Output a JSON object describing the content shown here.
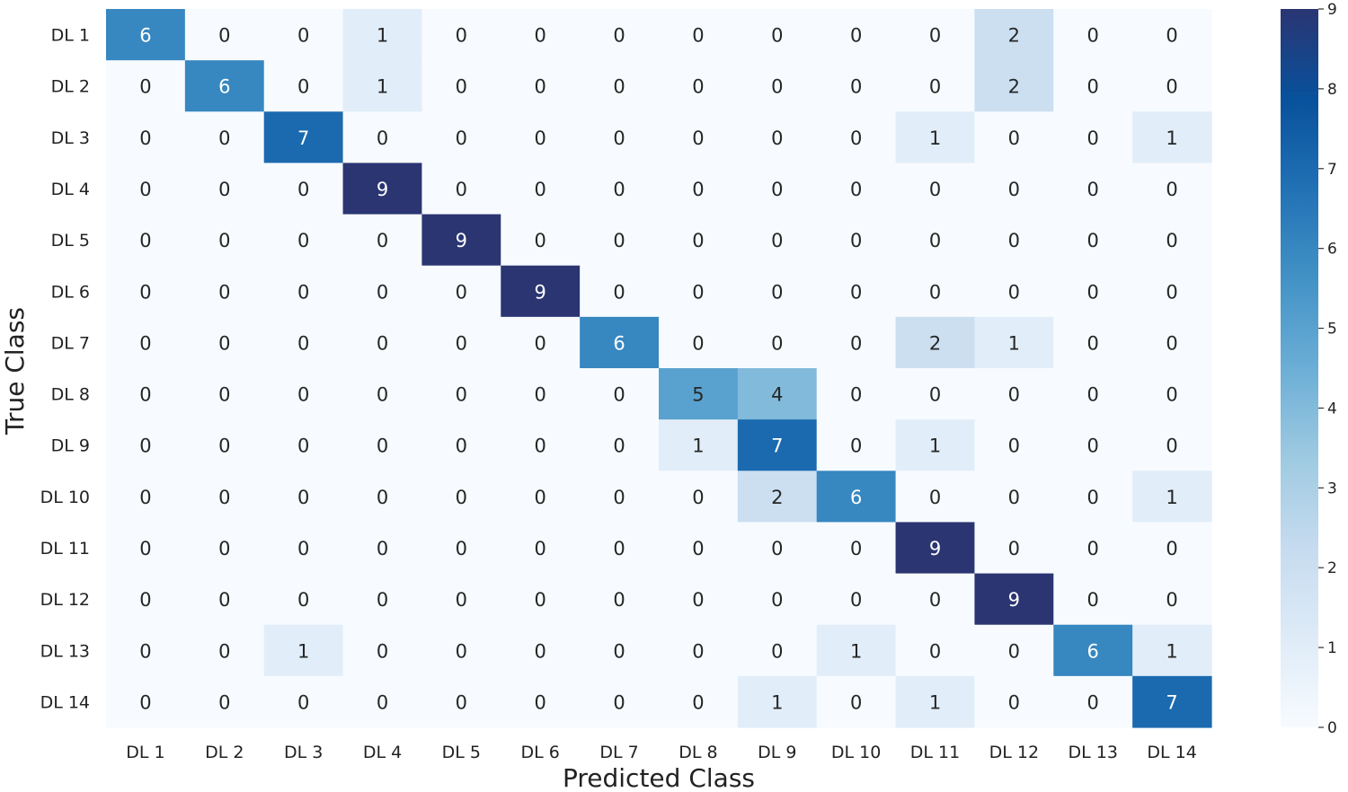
{
  "chart_data": {
    "type": "heatmap",
    "title": "",
    "xlabel": "Predicted Class",
    "ylabel": "True Class",
    "x_categories": [
      "DL 1",
      "DL 2",
      "DL 3",
      "DL 4",
      "DL 5",
      "DL 6",
      "DL 7",
      "DL 8",
      "DL 9",
      "DL 10",
      "DL 11",
      "DL 12",
      "DL 13",
      "DL 14"
    ],
    "y_categories": [
      "DL 1",
      "DL 2",
      "DL 3",
      "DL 4",
      "DL 5",
      "DL 6",
      "DL 7",
      "DL 8",
      "DL 9",
      "DL 10",
      "DL 11",
      "DL 12",
      "DL 13",
      "DL 14"
    ],
    "values": [
      [
        6,
        0,
        0,
        1,
        0,
        0,
        0,
        0,
        0,
        0,
        0,
        2,
        0,
        0
      ],
      [
        0,
        6,
        0,
        1,
        0,
        0,
        0,
        0,
        0,
        0,
        0,
        2,
        0,
        0
      ],
      [
        0,
        0,
        7,
        0,
        0,
        0,
        0,
        0,
        0,
        0,
        1,
        0,
        0,
        1
      ],
      [
        0,
        0,
        0,
        9,
        0,
        0,
        0,
        0,
        0,
        0,
        0,
        0,
        0,
        0
      ],
      [
        0,
        0,
        0,
        0,
        9,
        0,
        0,
        0,
        0,
        0,
        0,
        0,
        0,
        0
      ],
      [
        0,
        0,
        0,
        0,
        0,
        9,
        0,
        0,
        0,
        0,
        0,
        0,
        0,
        0
      ],
      [
        0,
        0,
        0,
        0,
        0,
        0,
        6,
        0,
        0,
        0,
        2,
        1,
        0,
        0
      ],
      [
        0,
        0,
        0,
        0,
        0,
        0,
        0,
        5,
        4,
        0,
        0,
        0,
        0,
        0
      ],
      [
        0,
        0,
        0,
        0,
        0,
        0,
        0,
        1,
        7,
        0,
        1,
        0,
        0,
        0
      ],
      [
        0,
        0,
        0,
        0,
        0,
        0,
        0,
        0,
        2,
        6,
        0,
        0,
        0,
        1
      ],
      [
        0,
        0,
        0,
        0,
        0,
        0,
        0,
        0,
        0,
        0,
        9,
        0,
        0,
        0
      ],
      [
        0,
        0,
        0,
        0,
        0,
        0,
        0,
        0,
        0,
        0,
        0,
        9,
        0,
        0
      ],
      [
        0,
        0,
        1,
        0,
        0,
        0,
        0,
        0,
        0,
        1,
        0,
        0,
        6,
        1
      ],
      [
        0,
        0,
        0,
        0,
        0,
        0,
        0,
        0,
        1,
        0,
        1,
        0,
        0,
        7
      ]
    ],
    "colorbar": {
      "range": [
        0,
        9
      ],
      "ticks": [
        0,
        1,
        2,
        3,
        4,
        5,
        6,
        7,
        8,
        9
      ],
      "colormap": "Blues",
      "colors": [
        "#f7fbff",
        "#deebf7",
        "#c6dbef",
        "#9ecae1",
        "#6baed6",
        "#4292c6",
        "#2171b5",
        "#08519c",
        "#08306b"
      ],
      "top_color": "#2a3572"
    },
    "grid": false,
    "legend": "colorbar-right"
  }
}
